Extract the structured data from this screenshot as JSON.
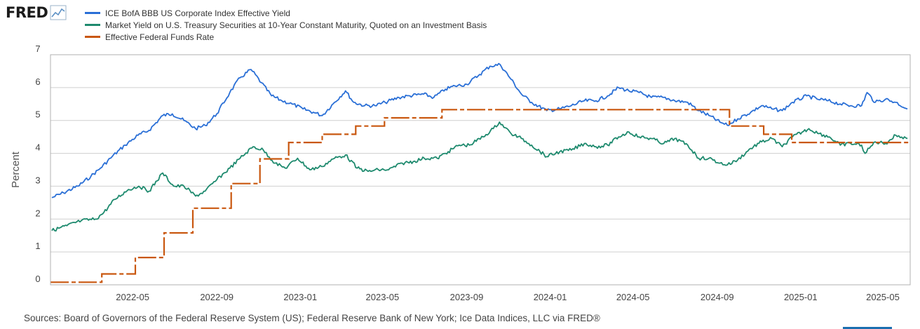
{
  "brand": {
    "logo_text": "FRED",
    "logo_icon": "line-graph-icon"
  },
  "source_text": "Sources: Board of Governors of the Federal Reserve System (US); Federal Reserve Bank of New York; Ice Data Indices, LLC via FRED®",
  "colors": {
    "corp": "#2a6fd6",
    "treasury": "#1e8a6e",
    "ffr": "#c9570f",
    "grid": "#cfcfcf",
    "frame": "#b0b0b0"
  },
  "chart_data": {
    "type": "line",
    "title": "",
    "ylabel": "Percent",
    "xlabel": "",
    "ylim": [
      0,
      7
    ],
    "yticks": [
      "0",
      "1",
      "2",
      "3",
      "4",
      "5",
      "6",
      "7"
    ],
    "xlim": [
      "2022-01-01",
      "2025-06-10"
    ],
    "xticks": [
      "2022-05",
      "2022-09",
      "2023-01",
      "2023-05",
      "2023-09",
      "2024-01",
      "2024-05",
      "2024-09",
      "2025-01",
      "2025-05"
    ],
    "grid": true,
    "legend_position": "top-left",
    "series": [
      {
        "name": "ICE BofA BBB US Corporate Index Effective Yield",
        "color_key": "corp",
        "line_style": "solid",
        "x": [
          "2022-01-03",
          "2022-01-20",
          "2022-02-10",
          "2022-03-01",
          "2022-03-15",
          "2022-04-01",
          "2022-04-20",
          "2022-05-09",
          "2022-05-25",
          "2022-06-14",
          "2022-06-28",
          "2022-07-15",
          "2022-08-01",
          "2022-08-15",
          "2022-09-01",
          "2022-09-20",
          "2022-10-05",
          "2022-10-21",
          "2022-11-05",
          "2022-11-20",
          "2022-12-05",
          "2022-12-20",
          "2023-01-05",
          "2023-01-20",
          "2023-02-02",
          "2023-02-20",
          "2023-03-08",
          "2023-03-20",
          "2023-04-05",
          "2023-04-20",
          "2023-05-05",
          "2023-05-25",
          "2023-06-10",
          "2023-06-30",
          "2023-07-15",
          "2023-08-01",
          "2023-08-15",
          "2023-09-01",
          "2023-09-20",
          "2023-10-05",
          "2023-10-20",
          "2023-11-05",
          "2023-11-20",
          "2023-12-05",
          "2023-12-27",
          "2024-01-15",
          "2024-02-01",
          "2024-02-20",
          "2024-03-08",
          "2024-03-25",
          "2024-04-10",
          "2024-04-25",
          "2024-05-10",
          "2024-05-28",
          "2024-06-15",
          "2024-07-01",
          "2024-07-20",
          "2024-08-05",
          "2024-08-20",
          "2024-09-05",
          "2024-09-16",
          "2024-10-01",
          "2024-10-20",
          "2024-11-05",
          "2024-11-20",
          "2024-12-05",
          "2024-12-20",
          "2025-01-10",
          "2025-01-25",
          "2025-02-10",
          "2025-02-28",
          "2025-03-15",
          "2025-03-31",
          "2025-04-08",
          "2025-04-20",
          "2025-05-05",
          "2025-05-20",
          "2025-06-06"
        ],
        "y": [
          2.65,
          2.8,
          3.0,
          3.3,
          3.55,
          3.9,
          4.25,
          4.55,
          4.7,
          5.15,
          5.2,
          5.0,
          4.75,
          4.85,
          5.2,
          5.85,
          6.3,
          6.55,
          6.15,
          5.75,
          5.6,
          5.5,
          5.35,
          5.25,
          5.15,
          5.55,
          5.9,
          5.55,
          5.45,
          5.45,
          5.55,
          5.7,
          5.75,
          5.8,
          5.7,
          5.95,
          6.05,
          6.1,
          6.4,
          6.65,
          6.7,
          6.25,
          5.8,
          5.55,
          5.3,
          5.35,
          5.45,
          5.6,
          5.6,
          5.75,
          6.0,
          5.9,
          5.85,
          5.7,
          5.7,
          5.6,
          5.55,
          5.3,
          5.15,
          4.95,
          4.85,
          5.05,
          5.25,
          5.45,
          5.35,
          5.3,
          5.55,
          5.75,
          5.65,
          5.6,
          5.5,
          5.45,
          5.45,
          5.85,
          5.55,
          5.65,
          5.55,
          5.35
        ]
      },
      {
        "name": "Market Yield on U.S. Treasury Securities at 10-Year Constant Maturity, Quoted on an Investment Basis",
        "color_key": "treasury",
        "line_style": "solid",
        "x": [
          "2022-01-03",
          "2022-01-25",
          "2022-02-15",
          "2022-03-08",
          "2022-03-20",
          "2022-04-05",
          "2022-04-25",
          "2022-05-10",
          "2022-05-25",
          "2022-06-14",
          "2022-06-30",
          "2022-07-15",
          "2022-08-01",
          "2022-08-15",
          "2022-09-01",
          "2022-09-20",
          "2022-10-05",
          "2022-10-24",
          "2022-11-08",
          "2022-11-25",
          "2022-12-10",
          "2022-12-28",
          "2023-01-15",
          "2023-02-01",
          "2023-02-20",
          "2023-03-08",
          "2023-03-25",
          "2023-04-10",
          "2023-04-25",
          "2023-05-10",
          "2023-05-30",
          "2023-06-15",
          "2023-07-01",
          "2023-07-20",
          "2023-08-05",
          "2023-08-21",
          "2023-09-05",
          "2023-09-25",
          "2023-10-10",
          "2023-10-19",
          "2023-11-05",
          "2023-11-20",
          "2023-12-05",
          "2023-12-27",
          "2024-01-15",
          "2024-02-01",
          "2024-02-20",
          "2024-03-08",
          "2024-03-25",
          "2024-04-10",
          "2024-04-25",
          "2024-05-10",
          "2024-05-28",
          "2024-06-15",
          "2024-07-01",
          "2024-07-20",
          "2024-08-05",
          "2024-08-20",
          "2024-09-05",
          "2024-09-16",
          "2024-10-01",
          "2024-10-20",
          "2024-11-05",
          "2024-11-20",
          "2024-12-05",
          "2024-12-20",
          "2025-01-13",
          "2025-01-28",
          "2025-02-12",
          "2025-02-28",
          "2025-03-15",
          "2025-03-31",
          "2025-04-05",
          "2025-04-20",
          "2025-05-05",
          "2025-05-20",
          "2025-06-06"
        ],
        "y": [
          1.65,
          1.8,
          1.95,
          2.0,
          2.2,
          2.6,
          2.9,
          3.0,
          2.85,
          3.4,
          3.0,
          3.0,
          2.7,
          2.85,
          3.2,
          3.55,
          3.85,
          4.2,
          4.1,
          3.7,
          3.55,
          3.85,
          3.5,
          3.6,
          3.85,
          3.95,
          3.55,
          3.45,
          3.5,
          3.5,
          3.7,
          3.75,
          3.85,
          3.85,
          4.05,
          4.25,
          4.25,
          4.5,
          4.75,
          4.95,
          4.6,
          4.45,
          4.25,
          3.9,
          4.05,
          4.1,
          4.3,
          4.2,
          4.25,
          4.5,
          4.65,
          4.5,
          4.45,
          4.3,
          4.45,
          4.25,
          3.85,
          3.85,
          3.7,
          3.65,
          3.8,
          4.15,
          4.35,
          4.45,
          4.2,
          4.5,
          4.75,
          4.6,
          4.5,
          4.25,
          4.3,
          4.25,
          4.0,
          4.35,
          4.3,
          4.55,
          4.45
        ]
      },
      {
        "name": "Effective Federal Funds Rate",
        "color_key": "ffr",
        "line_style": "dash-step",
        "x": [
          "2022-01-01",
          "2022-03-17",
          "2022-05-05",
          "2022-06-16",
          "2022-07-28",
          "2022-09-22",
          "2022-11-03",
          "2022-12-15",
          "2023-02-02",
          "2023-03-23",
          "2023-05-04",
          "2023-07-27",
          "2024-09-19",
          "2024-11-08",
          "2024-12-19",
          "2025-06-10"
        ],
        "y": [
          0.08,
          0.33,
          0.83,
          1.58,
          2.33,
          3.08,
          3.83,
          4.33,
          4.58,
          4.83,
          5.08,
          5.33,
          4.83,
          4.58,
          4.33,
          4.33
        ]
      }
    ]
  }
}
